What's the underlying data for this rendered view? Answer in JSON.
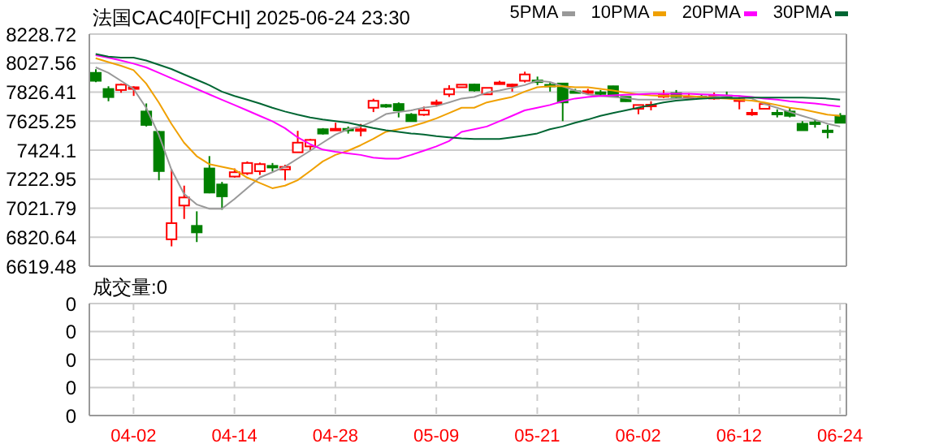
{
  "chart_data": [
    {
      "type": "candlestick",
      "title": "法国CAC40[FCHI] 2025-06-24 23:30",
      "tick_labels": "y",
      "grid": true,
      "legend": "top right",
      "categories": [
        null,
        null,
        null,
        null,
        null,
        null,
        null,
        null,
        null,
        null,
        null,
        null,
        null,
        null,
        null,
        null,
        null,
        null,
        null,
        null,
        null,
        null,
        null,
        null,
        null,
        null,
        null,
        null,
        null,
        null,
        null,
        null,
        null,
        null,
        null,
        null,
        null,
        null,
        null,
        null,
        null,
        null,
        null,
        null,
        null,
        null,
        null,
        null,
        null,
        null,
        null,
        null,
        null,
        null,
        null,
        null,
        null,
        null,
        null,
        null
      ],
      "ylim": [
        6619.48,
        8228.72
      ],
      "yticks": [
        6619.48,
        6820.64,
        7021.79,
        7222.95,
        7424.1,
        7625.25,
        7826.41,
        8027.56,
        8228.72
      ],
      "ohlc": [
        [
          7960,
          7985,
          7895,
          7905
        ],
        [
          7848,
          7867,
          7763,
          7792
        ],
        [
          7841,
          7886,
          7822,
          7878
        ],
        [
          7855,
          7867,
          7800,
          7860
        ],
        [
          7692,
          7748,
          7588,
          7599
        ],
        [
          7551,
          7558,
          7215,
          7279
        ],
        [
          6806,
          7290,
          6757,
          6918
        ],
        [
          7040,
          7178,
          6947,
          7096
        ],
        [
          6899,
          7000,
          6787,
          6854
        ],
        [
          7297,
          7383,
          7125,
          7130
        ],
        [
          7186,
          7204,
          7011,
          7104
        ],
        [
          7241,
          7297,
          7234,
          7271
        ],
        [
          7264,
          7346,
          7252,
          7335
        ],
        [
          7278,
          7338,
          7252,
          7327
        ],
        [
          7315,
          7335,
          7278,
          7305
        ],
        [
          7290,
          7323,
          7215,
          7308
        ],
        [
          7409,
          7558,
          7409,
          7476
        ],
        [
          7450,
          7502,
          7420,
          7495
        ],
        [
          7569,
          7577,
          7532,
          7539
        ],
        [
          7565,
          7614,
          7562,
          7572
        ],
        [
          7572,
          7588,
          7539,
          7565
        ],
        [
          7562,
          7606,
          7520,
          7569
        ],
        [
          7718,
          7781,
          7688,
          7766
        ],
        [
          7737,
          7744,
          7718,
          7733
        ],
        [
          7744,
          7755,
          7651,
          7700
        ],
        [
          7670,
          7681,
          7625,
          7625
        ],
        [
          7670,
          7726,
          7662,
          7700
        ],
        [
          7748,
          7774,
          7726,
          7755
        ],
        [
          7811,
          7874,
          7793,
          7848
        ],
        [
          7860,
          7878,
          7860,
          7878
        ],
        [
          7879,
          7886,
          7830,
          7838
        ],
        [
          7811,
          7856,
          7811,
          7856
        ],
        [
          7890,
          7905,
          7879,
          7893
        ],
        [
          7876,
          7886,
          7830,
          7879
        ],
        [
          7905,
          7968,
          7893,
          7949
        ],
        [
          7907,
          7934,
          7875,
          7903
        ],
        [
          7877,
          7897,
          7830,
          7872
        ],
        [
          7886,
          7886,
          7625,
          7755
        ],
        [
          7832,
          7849,
          7819,
          7828
        ],
        [
          7828,
          7849,
          7811,
          7832
        ],
        [
          7825,
          7841,
          7800,
          7821
        ],
        [
          7867,
          7870,
          7800,
          7800
        ],
        [
          7793,
          7796,
          7760,
          7763
        ],
        [
          7711,
          7737,
          7673,
          7737
        ],
        [
          7735,
          7763,
          7700,
          7739
        ],
        [
          7802,
          7841,
          7785,
          7806
        ],
        [
          7819,
          7841,
          7785,
          7793
        ],
        [
          7791,
          7819,
          7774,
          7795
        ],
        [
          7795,
          7808,
          7778,
          7791
        ],
        [
          7782,
          7823,
          7774,
          7800
        ],
        [
          7802,
          7830,
          7782,
          7798
        ],
        [
          7772,
          7793,
          7707,
          7776
        ],
        [
          7679,
          7711,
          7662,
          7683
        ],
        [
          7711,
          7755,
          7711,
          7744
        ],
        [
          7683,
          7707,
          7651,
          7679
        ],
        [
          7692,
          7718,
          7651,
          7662
        ],
        [
          7607,
          7625,
          7562,
          7562
        ],
        [
          7616,
          7636,
          7580,
          7612
        ],
        [
          7560,
          7599,
          7506,
          7556
        ],
        [
          7662,
          7681,
          7614,
          7614
        ]
      ],
      "colors": [
        "#008000",
        "#008000",
        "#ff0000",
        "#ff0000",
        "#008000",
        "#008000",
        "#ff0000",
        "#ff0000",
        "#008000",
        "#008000",
        "#008000",
        "#ff0000",
        "#ff0000",
        "#ff0000",
        "#008000",
        "#ff0000",
        "#ff0000",
        "#ff0000",
        "#008000",
        "#ff0000",
        "#008000",
        "#ff0000",
        "#ff0000",
        "#008000",
        "#008000",
        "#008000",
        "#ff0000",
        "#ff0000",
        "#ff0000",
        "#ff0000",
        "#008000",
        "#ff0000",
        "#ff0000",
        "#ff0000",
        "#ff0000",
        "#008000",
        "#008000",
        "#008000",
        "#008000",
        "#ff0000",
        "#008000",
        "#008000",
        "#008000",
        "#ff0000",
        "#ff0000",
        "#ff0000",
        "#008000",
        "#ff0000",
        "#008000",
        "#ff0000",
        "#008000",
        "#ff0000",
        "#ff0000",
        "#ff0000",
        "#008000",
        "#008000",
        "#008000",
        "#008000",
        "#008000",
        "#008000"
      ],
      "series": [
        {
          "type": "line",
          "name": "5PMA",
          "color": "#999999",
          "values": [
            7998,
            7961,
            7905,
            7849,
            7718,
            7532,
            7290,
            7122,
            7048,
            7018,
            7018,
            7085,
            7160,
            7234,
            7271,
            7309,
            7365,
            7420,
            7476,
            7532,
            7569,
            7588,
            7625,
            7674,
            7689,
            7700,
            7718,
            7730,
            7755,
            7782,
            7793,
            7823,
            7838,
            7856,
            7875,
            7905,
            7897,
            7867,
            7838,
            7811,
            7800,
            7793,
            7785,
            7774,
            7774,
            7774,
            7782,
            7785,
            7793,
            7793,
            7800,
            7800,
            7782,
            7744,
            7718,
            7689,
            7662,
            7636,
            7607,
            7588
          ]
        },
        {
          "type": "line",
          "name": "10PMA",
          "color": "#f0a000",
          "values": [
            8061,
            8035,
            8009,
            7979,
            7886,
            7755,
            7607,
            7476,
            7383,
            7327,
            7309,
            7290,
            7234,
            7197,
            7160,
            7178,
            7215,
            7279,
            7346,
            7391,
            7420,
            7458,
            7502,
            7551,
            7569,
            7588,
            7614,
            7644,
            7681,
            7718,
            7718,
            7755,
            7774,
            7793,
            7830,
            7860,
            7867,
            7867,
            7860,
            7860,
            7849,
            7838,
            7823,
            7811,
            7804,
            7800,
            7800,
            7800,
            7793,
            7785,
            7782,
            7774,
            7767,
            7755,
            7737,
            7718,
            7707,
            7689,
            7670,
            7662
          ]
        },
        {
          "type": "line",
          "name": "20PMA",
          "color": "#ff00ff",
          "values": [
            8083,
            8065,
            8046,
            8024,
            7998,
            7961,
            7923,
            7886,
            7849,
            7811,
            7774,
            7737,
            7700,
            7662,
            7625,
            7577,
            7513,
            7465,
            7428,
            7413,
            7402,
            7391,
            7372,
            7365,
            7365,
            7391,
            7420,
            7450,
            7487,
            7551,
            7569,
            7588,
            7625,
            7662,
            7700,
            7718,
            7737,
            7763,
            7782,
            7793,
            7800,
            7804,
            7808,
            7811,
            7815,
            7815,
            7815,
            7815,
            7811,
            7808,
            7804,
            7800,
            7793,
            7782,
            7774,
            7763,
            7755,
            7748,
            7737,
            7726
          ]
        },
        {
          "type": "line",
          "name": "30PMA",
          "color": "#006633",
          "values": [
            8091,
            8072,
            8065,
            8065,
            8046,
            8016,
            7987,
            7949,
            7912,
            7875,
            7830,
            7800,
            7774,
            7748,
            7718,
            7692,
            7670,
            7651,
            7636,
            7625,
            7614,
            7596,
            7577,
            7562,
            7551,
            7540,
            7532,
            7521,
            7513,
            7506,
            7502,
            7502,
            7502,
            7513,
            7525,
            7540,
            7569,
            7588,
            7614,
            7636,
            7662,
            7681,
            7700,
            7718,
            7737,
            7755,
            7767,
            7774,
            7782,
            7785,
            7785,
            7785,
            7789,
            7789,
            7789,
            7789,
            7789,
            7785,
            7782,
            7774
          ]
        }
      ]
    },
    {
      "type": "bar",
      "title": "成交量:0",
      "grid": true,
      "categories": [
        null,
        null,
        null,
        "04-02",
        null,
        null,
        null,
        null,
        null,
        null,
        null,
        "04-14",
        null,
        null,
        null,
        null,
        null,
        null,
        null,
        "04-28",
        null,
        null,
        null,
        null,
        null,
        null,
        null,
        "05-09",
        null,
        null,
        null,
        null,
        null,
        null,
        null,
        "05-21",
        null,
        null,
        null,
        null,
        null,
        null,
        null,
        "06-02",
        null,
        null,
        null,
        null,
        null,
        null,
        null,
        "06-12",
        null,
        null,
        null,
        null,
        null,
        null,
        null,
        "06-24"
      ],
      "ylim": [
        0,
        0.4
      ],
      "yticks": [
        {
          "value": 0,
          "label": "0"
        },
        {
          "value": 0.1,
          "label": "0"
        },
        {
          "value": 0.2,
          "label": "0"
        },
        {
          "value": 0.3,
          "label": "0"
        },
        {
          "value": 0.4,
          "label": "0"
        }
      ],
      "values": [
        0,
        0,
        0,
        0,
        0,
        0,
        0,
        0,
        0,
        0,
        0,
        0,
        0,
        0,
        0,
        0,
        0,
        0,
        0,
        0,
        0,
        0,
        0,
        0,
        0,
        0,
        0,
        0,
        0,
        0,
        0,
        0,
        0,
        0,
        0,
        0,
        0,
        0,
        0,
        0,
        0,
        0,
        0,
        0,
        0,
        0,
        0,
        0,
        0,
        0,
        0,
        0,
        0,
        0,
        0,
        0,
        0,
        0,
        0,
        0
      ]
    }
  ]
}
